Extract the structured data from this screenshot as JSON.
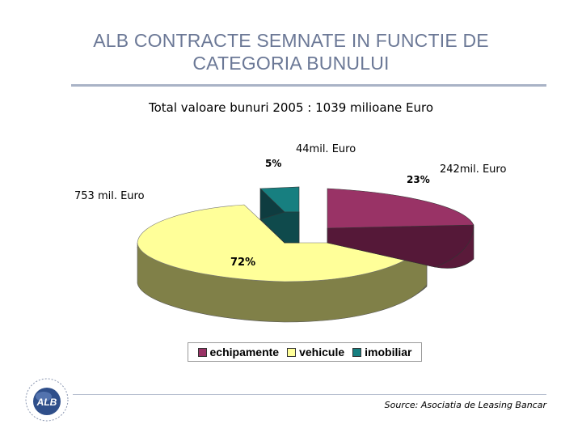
{
  "slide": {
    "title_line1": "ALB CONTRACTE SEMNATE IN FUNCTIE DE",
    "title_line2": "CATEGORIA BUNULUI",
    "source": "Source: Asociatia de Leasing Bancar",
    "logo_text": "ALB"
  },
  "colors": {
    "title": "#6b7896",
    "echipamente": "#993366",
    "vehicule": "#ffff99",
    "imobiliar": "#177f80"
  },
  "chart_data": {
    "type": "pie",
    "style": "3d-exploded",
    "title": "Total valoare bunuri 2005 : 1039 milioane Euro",
    "categories": [
      "echipamente",
      "vehicule",
      "imobiliar"
    ],
    "values": [
      242,
      753,
      44
    ],
    "units_labels": [
      "242mil. Euro",
      "753 mil. Euro",
      "44mil. Euro"
    ],
    "percent_labels": [
      "23%",
      "72%",
      "5%"
    ],
    "legend_position": "bottom"
  }
}
